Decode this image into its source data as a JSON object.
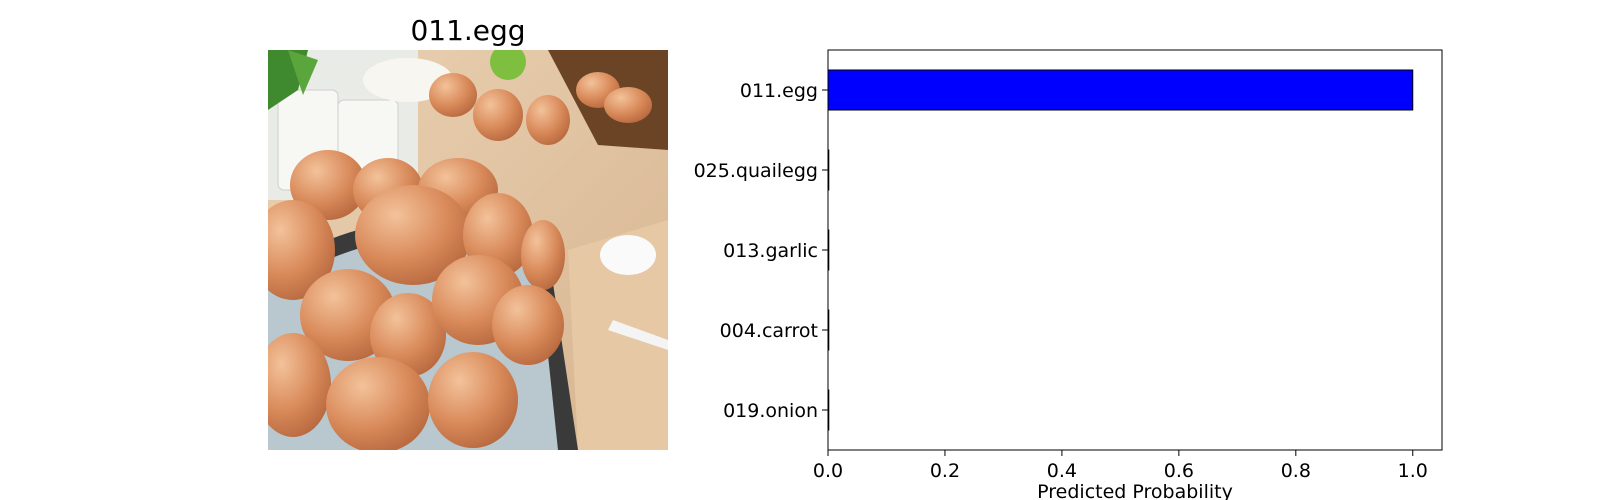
{
  "image_panel": {
    "title": "011.egg",
    "photo_icon": "eggs-in-basket-photo"
  },
  "chart_data": {
    "type": "bar",
    "orientation": "horizontal",
    "categories": [
      "011.egg",
      "025.quailegg",
      "013.garlic",
      "004.carrot",
      "019.onion"
    ],
    "values": [
      1.0,
      0.0,
      0.0,
      0.0,
      0.0
    ],
    "xlabel": "Predicted Probability",
    "ylabel": "",
    "xlim": [
      0,
      1.05
    ],
    "xticks": [
      "0.0",
      "0.2",
      "0.4",
      "0.6",
      "0.8",
      "1.0"
    ],
    "bar_color": "#0000ff",
    "grid": false
  }
}
